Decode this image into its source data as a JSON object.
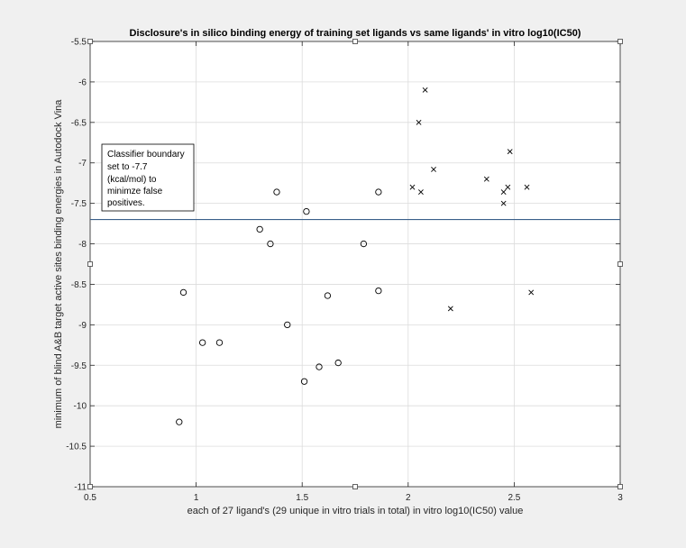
{
  "chart_data": {
    "type": "scatter",
    "title": "Disclosure's in silico binding energy of training set ligands vs same ligands' in vitro log10(IC50)",
    "xlabel": "each of 27 ligand's (29 unique in vitro trials in total) in vitro log10(IC50) value",
    "ylabel": "minimum of blind A&B target active sites binding energies in Autodock Vina",
    "xlim": [
      0.5,
      3
    ],
    "ylim": [
      -11,
      -5.5
    ],
    "grid": true,
    "x_ticks": [
      "0.5",
      "1",
      "1.5",
      "2",
      "2.5",
      "3"
    ],
    "y_ticks": [
      "-5.5",
      "-6",
      "-6.5",
      "-7",
      "-7.5",
      "-8",
      "-8.5",
      "-9",
      "-9.5",
      "-10",
      "-10.5",
      "-11"
    ],
    "threshold": -7.7,
    "annotation": [
      "Classifier boundary",
      "set to -7.7",
      "(kcal/mol) to",
      "minimze false",
      "positives."
    ],
    "series": [
      {
        "marker": "o",
        "x": [
          0.92,
          0.94,
          1.03,
          1.11,
          1.3,
          1.35,
          1.38,
          1.43,
          1.51,
          1.52,
          1.58,
          1.62,
          1.67,
          1.79,
          1.86,
          1.86
        ],
        "y": [
          -10.2,
          -8.6,
          -9.22,
          -9.22,
          -7.82,
          -8.0,
          -7.36,
          -9.0,
          -9.7,
          -7.6,
          -9.52,
          -8.64,
          -9.47,
          -8.0,
          -7.36,
          -8.58
        ]
      },
      {
        "marker": "x",
        "x": [
          2.02,
          2.05,
          2.06,
          2.08,
          2.12,
          2.2,
          2.37,
          2.45,
          2.45,
          2.47,
          2.48,
          2.56,
          2.58
        ],
        "y": [
          -7.3,
          -6.5,
          -7.36,
          -6.1,
          -7.08,
          -8.8,
          -7.2,
          -7.36,
          -7.5,
          -7.3,
          -6.86,
          -7.3,
          -8.6
        ]
      }
    ]
  }
}
